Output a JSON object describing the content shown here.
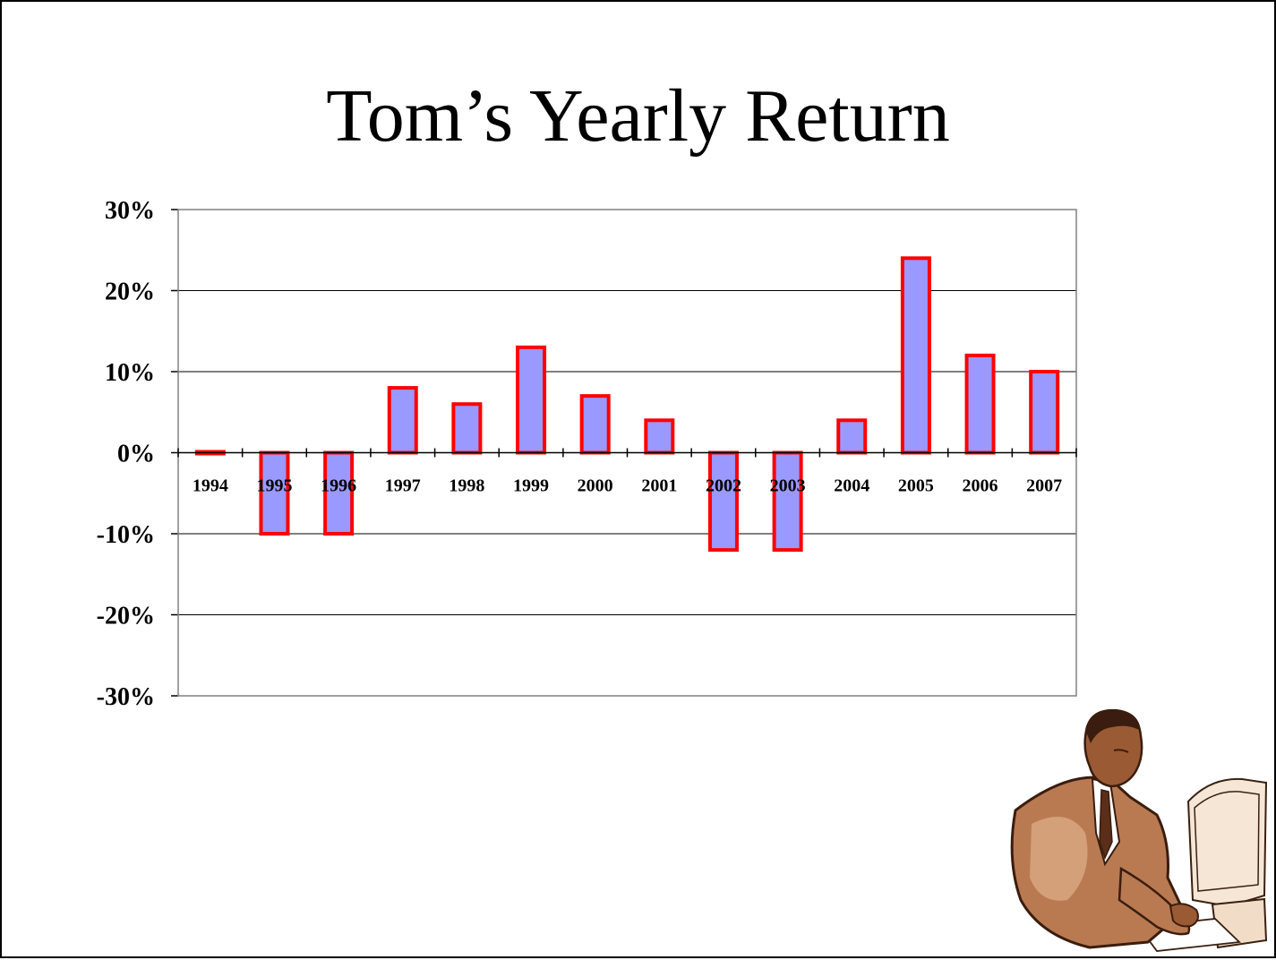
{
  "slide": {
    "title": "Tom’s Yearly Return"
  },
  "chart_data": {
    "type": "bar",
    "title": "",
    "xlabel": "",
    "ylabel": "",
    "categories": [
      "1994",
      "1995",
      "1996",
      "1997",
      "1998",
      "1999",
      "2000",
      "2001",
      "2002",
      "2003",
      "2004",
      "2005",
      "2006",
      "2007"
    ],
    "values": [
      0.0,
      -10.0,
      -10.0,
      8.0,
      6.0,
      13.0,
      7.0,
      4.0,
      -12.0,
      -12.0,
      4.0,
      24.0,
      12.0,
      10.0
    ],
    "unit": "%",
    "ylim": [
      -30,
      30
    ],
    "yticks": [
      "30%",
      "20%",
      "10%",
      "0%",
      "-10%",
      "-20%",
      "-30%"
    ],
    "grid": true,
    "legend": "none",
    "colors": {
      "bar_fill": "#9999ff",
      "bar_edge": "#ff0000",
      "grid": "#000000"
    }
  },
  "clipart": {
    "icon": "businessman-at-computer-icon"
  }
}
